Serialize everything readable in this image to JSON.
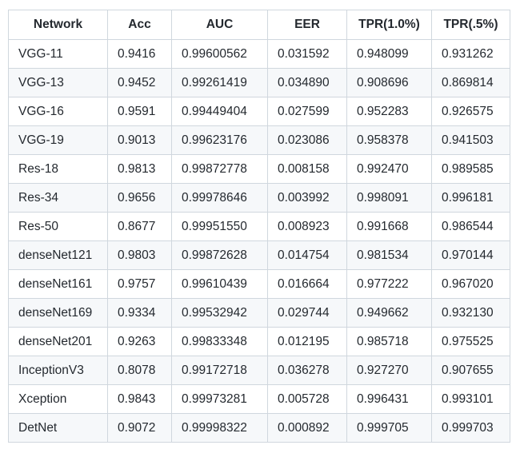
{
  "table": {
    "headers": [
      "Network",
      "Acc",
      "AUC",
      "EER",
      "TPR(1.0%)",
      "TPR(.5%)"
    ],
    "rows": [
      [
        "VGG-11",
        "0.9416",
        "0.99600562",
        "0.031592",
        "0.948099",
        "0.931262"
      ],
      [
        "VGG-13",
        "0.9452",
        "0.99261419",
        "0.034890",
        "0.908696",
        "0.869814"
      ],
      [
        "VGG-16",
        "0.9591",
        "0.99449404",
        "0.027599",
        "0.952283",
        "0.926575"
      ],
      [
        "VGG-19",
        "0.9013",
        "0.99623176",
        "0.023086",
        "0.958378",
        "0.941503"
      ],
      [
        "Res-18",
        "0.9813",
        "0.99872778",
        "0.008158",
        "0.992470",
        "0.989585"
      ],
      [
        "Res-34",
        "0.9656",
        "0.99978646",
        "0.003992",
        "0.998091",
        "0.996181"
      ],
      [
        "Res-50",
        "0.8677",
        "0.99951550",
        "0.008923",
        "0.991668",
        "0.986544"
      ],
      [
        "denseNet121",
        "0.9803",
        "0.99872628",
        "0.014754",
        "0.981534",
        "0.970144"
      ],
      [
        "denseNet161",
        "0.9757",
        "0.99610439",
        "0.016664",
        "0.977222",
        "0.967020"
      ],
      [
        "denseNet169",
        "0.9334",
        "0.99532942",
        "0.029744",
        "0.949662",
        "0.932130"
      ],
      [
        "denseNet201",
        "0.9263",
        "0.99833348",
        "0.012195",
        "0.985718",
        "0.975525"
      ],
      [
        "InceptionV3",
        "0.8078",
        "0.99172718",
        "0.036278",
        "0.927270",
        "0.907655"
      ],
      [
        "Xception",
        "0.9843",
        "0.99973281",
        "0.005728",
        "0.996431",
        "0.993101"
      ],
      [
        "DetNet",
        "0.9072",
        "0.99998322",
        "0.000892",
        "0.999705",
        "0.999703"
      ]
    ]
  },
  "colors": {
    "border": "#d0d7de",
    "stripe": "#f6f8fa",
    "text": "#24292f"
  }
}
